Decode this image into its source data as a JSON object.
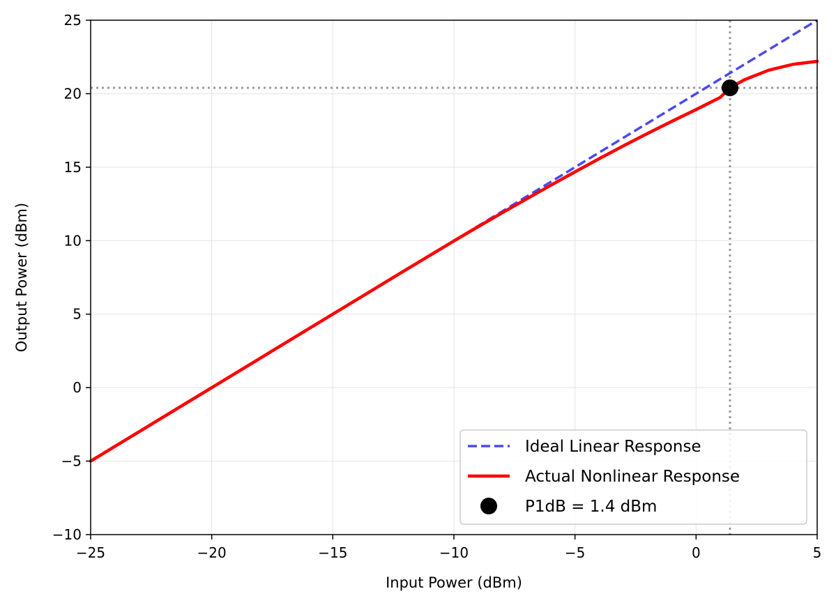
{
  "chart_data": {
    "type": "line",
    "title": "",
    "xlabel": "Input Power (dBm)",
    "ylabel": "Output Power (dBm)",
    "xlim": [
      -25,
      5
    ],
    "ylim": [
      -10,
      25
    ],
    "xticks": [
      -25,
      -20,
      -15,
      -10,
      -5,
      0,
      5
    ],
    "yticks": [
      -10,
      -5,
      0,
      5,
      10,
      15,
      20,
      25
    ],
    "xtick_labels": [
      "−25",
      "−20",
      "−15",
      "−10",
      "−5",
      "0",
      "5"
    ],
    "ytick_labels": [
      "−10",
      "−5",
      "0",
      "5",
      "10",
      "15",
      "20",
      "25"
    ],
    "grid": true,
    "legend_position": "lower-right",
    "series": [
      {
        "name": "Ideal Linear Response",
        "style": "dashed",
        "color": "#4a4af0",
        "x": [
          -25,
          5
        ],
        "y": [
          -5,
          25
        ]
      },
      {
        "name": "Actual Nonlinear Response",
        "style": "solid",
        "color": "#ff0000",
        "x": [
          -25,
          -20,
          -15,
          -12,
          -10,
          -9,
          -8,
          -7,
          -6,
          -5,
          -4,
          -3,
          -2,
          -1,
          0,
          1,
          1.4,
          2,
          3,
          4,
          5
        ],
        "y": [
          -5,
          0,
          5,
          8,
          9.98,
          10.95,
          11.9,
          12.84,
          13.77,
          14.68,
          15.58,
          16.45,
          17.3,
          18.12,
          18.92,
          19.75,
          20.4,
          20.95,
          21.6,
          22.0,
          22.2
        ]
      }
    ],
    "marker": {
      "name": "P1dB = 1.4 dBm",
      "x": 1.4,
      "y": 20.4,
      "color": "#000000"
    },
    "reference_lines": {
      "vertical_x": 1.4,
      "horizontal_y": 20.4,
      "color": "#999999"
    }
  }
}
